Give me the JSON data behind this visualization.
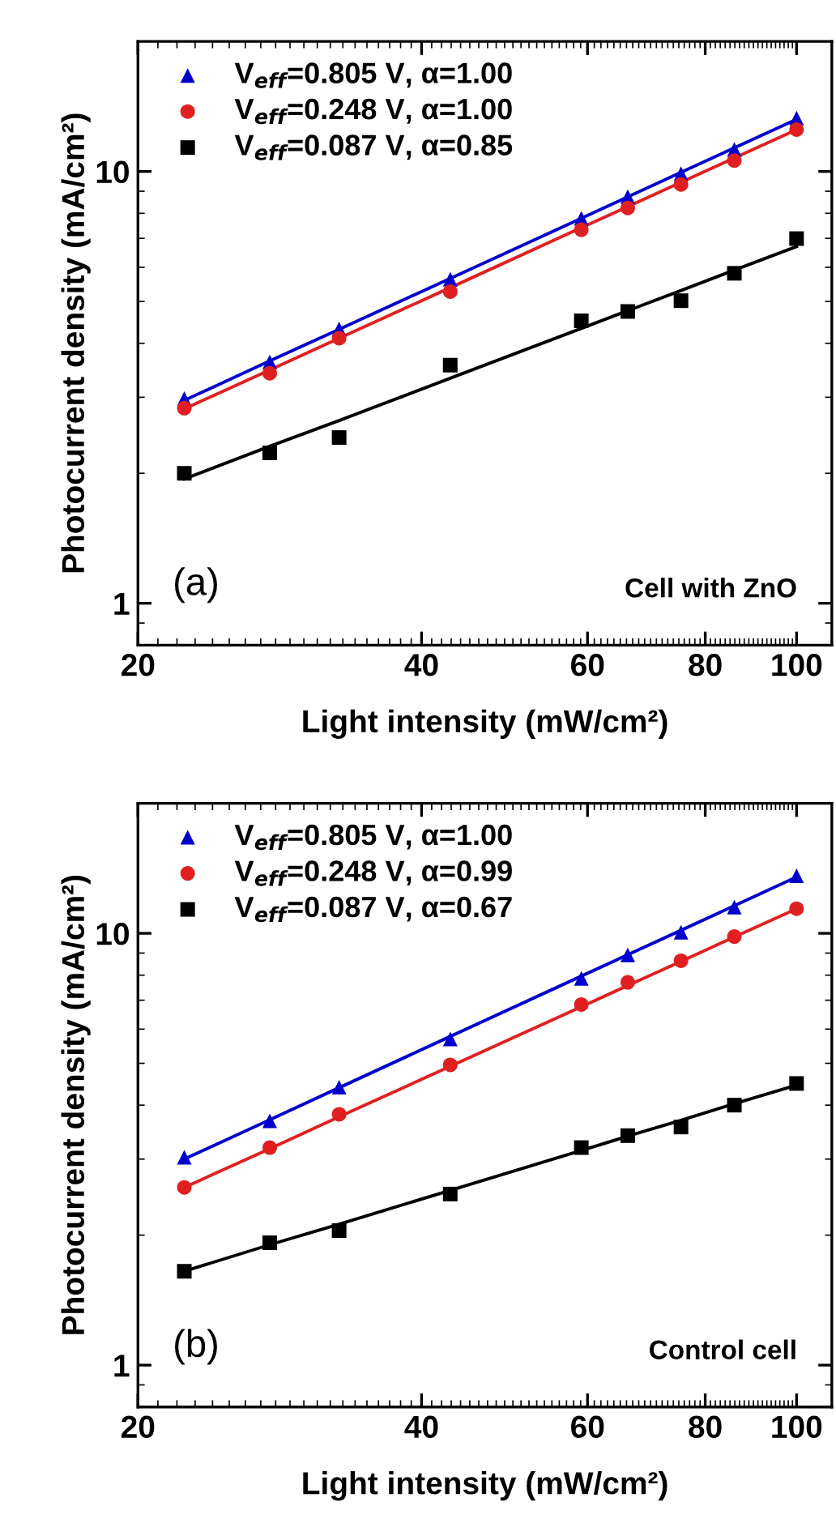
{
  "chart_data": [
    {
      "type": "scatter",
      "xlabel": "Light intensity (mW/cm²)",
      "ylabel": "Photocurrent density (mA/cm²)",
      "log": "xy",
      "xlim": [
        20,
        109
      ],
      "ylim": [
        0.8,
        20
      ],
      "xticks": [
        20,
        40,
        60,
        80,
        100
      ],
      "yticks": [
        1,
        10
      ],
      "grid": false,
      "legend": "top left",
      "annotations": [
        "(a)",
        "Cell with ZnO"
      ],
      "x": [
        22.4,
        27.6,
        32.7,
        42.9,
        59.1,
        66.2,
        75.4,
        85.9,
        100
      ],
      "series": [
        {
          "name": "V$_{eff}$=0.805 V, α=1.00",
          "color": "#0000cc",
          "marker": "triangle",
          "values": [
            2.98,
            3.62,
            4.32,
            5.63,
            7.79,
            8.74,
            9.89,
            11.25,
            13.3
          ]
        },
        {
          "name": "V$_{eff}$=0.248 V, α=1.00",
          "color": "#e02020",
          "marker": "circle",
          "values": [
            2.83,
            3.41,
            4.11,
            5.27,
            7.33,
            8.23,
            9.33,
            10.6,
            12.5
          ]
        },
        {
          "name": "V$_{eff}$=0.087 V, α=0.85",
          "color": "#000000",
          "marker": "square",
          "values": [
            2.0,
            2.23,
            2.42,
            3.56,
            4.51,
            4.74,
            5.02,
            5.81,
            6.99
          ]
        },
        {
          "type": "line",
          "color": "#0000cc",
          "values": [
            2.95,
            3.64,
            4.31,
            5.65,
            7.79,
            8.73,
            9.95,
            11.34,
            13.2
          ]
        },
        {
          "type": "line",
          "color": "#e02020",
          "values": [
            2.82,
            3.47,
            4.11,
            5.38,
            7.41,
            8.29,
            9.44,
            10.75,
            12.5
          ]
        },
        {
          "type": "line",
          "color": "#000000",
          "values": [
            1.94,
            2.31,
            2.65,
            3.32,
            4.33,
            4.76,
            5.3,
            5.91,
            6.7
          ]
        }
      ]
    },
    {
      "type": "scatter",
      "xlabel": "Light intensity (mW/cm²)",
      "ylabel": "Photocurrent density (mA/cm²)",
      "log": "xy",
      "xlim": [
        20,
        109
      ],
      "ylim": [
        0.8,
        20
      ],
      "xticks": [
        20,
        40,
        60,
        80,
        100
      ],
      "yticks": [
        1,
        10
      ],
      "grid": false,
      "legend": "top left",
      "annotations": [
        "(b)",
        "Control cell"
      ],
      "x": [
        22.4,
        27.6,
        32.7,
        42.9,
        59.1,
        66.2,
        75.4,
        85.9,
        100
      ],
      "series": [
        {
          "name": "V$_{eff}$=0.805 V, α=1.00",
          "color": "#0000cc",
          "marker": "triangle",
          "values": [
            3.03,
            3.68,
            4.4,
            5.69,
            7.86,
            8.91,
            10.06,
            11.5,
            13.6
          ]
        },
        {
          "name": "V$_{eff}$=0.248 V, α=0.99",
          "color": "#e02020",
          "marker": "circle",
          "values": [
            2.58,
            3.19,
            3.81,
            4.96,
            6.84,
            7.7,
            8.64,
            9.83,
            11.4
          ]
        },
        {
          "name": "V$_{eff}$=0.087 V, α=0.67",
          "color": "#000000",
          "marker": "square",
          "values": [
            1.65,
            1.92,
            2.05,
            2.49,
            3.19,
            3.4,
            3.56,
            4.0,
            4.49
          ]
        },
        {
          "type": "line",
          "color": "#0000cc",
          "values": [
            3.0,
            3.7,
            4.39,
            5.77,
            7.96,
            8.92,
            10.16,
            11.59,
            13.5
          ]
        },
        {
          "type": "line",
          "color": "#e02020",
          "values": [
            2.58,
            3.17,
            3.76,
            4.92,
            6.76,
            7.57,
            8.61,
            9.81,
            11.4
          ]
        },
        {
          "type": "line",
          "color": "#000000",
          "values": [
            1.65,
            1.9,
            2.12,
            2.54,
            3.14,
            3.39,
            3.69,
            4.03,
            4.45
          ]
        }
      ]
    }
  ]
}
